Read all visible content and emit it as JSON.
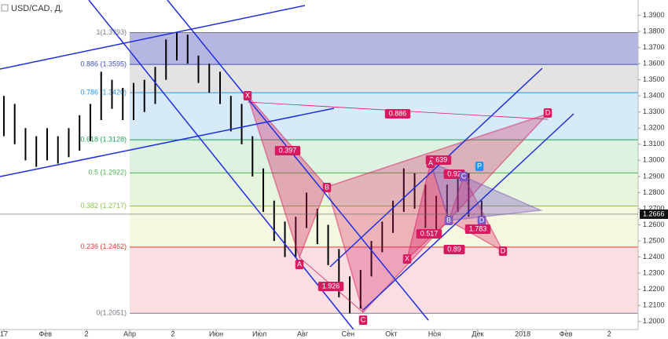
{
  "chart_data": {
    "type": "ohlc",
    "title": "USD/CAD, Д,",
    "x": [
      0,
      0.25,
      0.5,
      0.75,
      1,
      1.25,
      1.5,
      1.75,
      2,
      2.25,
      2.5,
      2.75,
      3,
      3.25,
      3.5,
      3.75,
      4,
      4.25,
      4.5,
      4.75,
      5,
      5.25,
      5.5,
      5.75,
      6,
      6.25,
      6.5,
      6.75,
      7,
      7.25,
      7.5,
      7.75,
      8,
      8.25,
      8.5,
      8.75,
      9,
      9.25,
      9.5,
      9.75,
      10,
      10.25,
      10.5,
      10.75,
      11.05
    ],
    "high": [
      1.34,
      1.335,
      1.32,
      1.315,
      1.32,
      1.315,
      1.32,
      1.328,
      1.335,
      1.355,
      1.35,
      1.345,
      1.348,
      1.35,
      1.358,
      1.375,
      1.3793,
      1.378,
      1.365,
      1.36,
      1.355,
      1.34,
      1.335,
      1.315,
      1.295,
      1.275,
      1.262,
      1.265,
      1.28,
      1.27,
      1.26,
      1.245,
      1.228,
      1.232,
      1.25,
      1.262,
      1.275,
      1.295,
      1.292,
      1.285,
      1.278,
      1.285,
      1.29,
      1.292,
      1.275
    ],
    "low": [
      1.315,
      1.31,
      1.3,
      1.296,
      1.3,
      1.298,
      1.302,
      1.306,
      1.312,
      1.325,
      1.332,
      1.325,
      1.325,
      1.33,
      1.335,
      1.35,
      1.362,
      1.36,
      1.348,
      1.342,
      1.335,
      1.318,
      1.31,
      1.29,
      1.268,
      1.25,
      1.24,
      1.24,
      1.258,
      1.248,
      1.235,
      1.215,
      1.2051,
      1.208,
      1.228,
      1.243,
      1.255,
      1.268,
      1.27,
      1.258,
      1.255,
      1.262,
      1.268,
      1.265,
      1.262
    ],
    "color": "#000000",
    "xlim": [
      -0.09,
      14.67
    ],
    "xticks": [
      {
        "value": 0,
        "label": "17"
      },
      {
        "value": 0.96,
        "label": "Фев"
      },
      {
        "value": 1.91,
        "label": "2"
      },
      {
        "value": 2.91,
        "label": "Апр"
      },
      {
        "value": 3.91,
        "label": "2"
      },
      {
        "value": 4.91,
        "label": "Июн"
      },
      {
        "value": 5.91,
        "label": "Июл"
      },
      {
        "value": 6.91,
        "label": "Авг"
      },
      {
        "value": 7.96,
        "label": "Сен"
      },
      {
        "value": 8.96,
        "label": "Окт"
      },
      {
        "value": 9.96,
        "label": "Ноя"
      },
      {
        "value": 10.96,
        "label": "Дек"
      },
      {
        "value": 12,
        "label": "2018"
      },
      {
        "value": 13,
        "label": "Фев"
      },
      {
        "value": 14,
        "label": "2"
      }
    ],
    "ylim": [
      1.195,
      1.3995
    ],
    "yticks": [
      {
        "value": 1.2,
        "label": "1.2000"
      },
      {
        "value": 1.21,
        "label": "1.2100"
      },
      {
        "value": 1.22,
        "label": "1.2200"
      },
      {
        "value": 1.23,
        "label": "1.2300"
      },
      {
        "value": 1.24,
        "label": "1.2400"
      },
      {
        "value": 1.25,
        "label": "1.2500"
      },
      {
        "value": 1.26,
        "label": "1.2600"
      },
      {
        "value": 1.27,
        "label": "1.2700"
      },
      {
        "value": 1.28,
        "label": "1.2800"
      },
      {
        "value": 1.29,
        "label": "1.2900"
      },
      {
        "value": 1.3,
        "label": "1.3000"
      },
      {
        "value": 1.31,
        "label": "1.3100"
      },
      {
        "value": 1.32,
        "label": "1.3200"
      },
      {
        "value": 1.33,
        "label": "1.3300"
      },
      {
        "value": 1.34,
        "label": "1.3400"
      },
      {
        "value": 1.35,
        "label": "1.3500"
      },
      {
        "value": 1.36,
        "label": "1.3600"
      },
      {
        "value": 1.37,
        "label": "1.3700"
      },
      {
        "value": 1.38,
        "label": "1.3800"
      },
      {
        "value": 1.39,
        "label": "1.3900"
      }
    ],
    "last_price": {
      "value": 1.2666,
      "label": "1.2666"
    },
    "fib_levels": [
      {
        "label": "1(1.3793)",
        "price": 1.3793,
        "color": "#787b86",
        "fill": "#a9a9dd"
      },
      {
        "label": "0.886 (1.3595)",
        "price": 1.3595,
        "color": "#3f51b5",
        "fill": "#dedede"
      },
      {
        "label": "0.786 (1.3420)",
        "price": 1.342,
        "color": "#2196f3",
        "fill": "#cfe8f6"
      },
      {
        "label": "0.618 (1.3128)",
        "price": 1.3128,
        "color": "#21a35a",
        "fill": "#d7f0dc"
      },
      {
        "label": "0.5 (1.2922)",
        "price": 1.2922,
        "color": "#4caf50",
        "fill": "#e3f3d8"
      },
      {
        "label": "0.382 (1.2717)",
        "price": 1.2717,
        "color": "#8bc34a",
        "fill": "#f3f6da"
      },
      {
        "label": "0.236 (1.2462)",
        "price": 1.2462,
        "color": "#e53935",
        "fill": "#f9d8dc"
      },
      {
        "label": "0(1.2051)",
        "price": 1.2051,
        "color": "#787b86"
      }
    ],
    "annotations": [
      "X",
      "A",
      "B",
      "C",
      "D",
      "0.397",
      "1.926",
      "0.886",
      "0.639",
      "A",
      "0.92",
      "C",
      "P",
      "B",
      "D",
      "0.517",
      "1.783",
      "X",
      "0.89",
      "D"
    ]
  }
}
